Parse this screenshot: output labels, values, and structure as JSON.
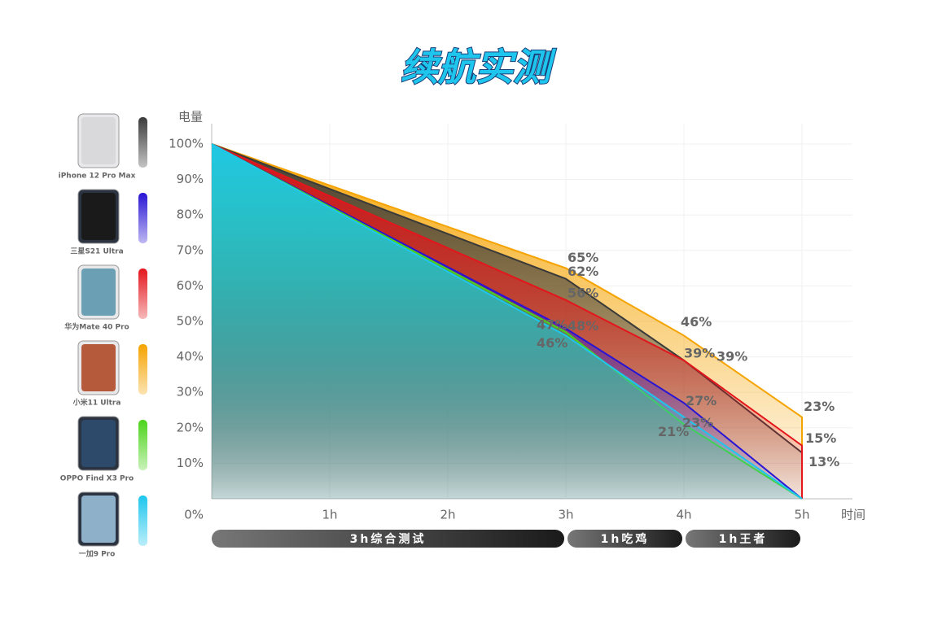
{
  "chart_data": {
    "type": "area",
    "title": "续航实测",
    "ylabel": "电量",
    "xlabel": "时间",
    "x": [
      0,
      3,
      4,
      5
    ],
    "xlim": [
      0,
      5
    ],
    "xticks": [
      {
        "value": 1,
        "label": "1h"
      },
      {
        "value": 2,
        "label": "2h"
      },
      {
        "value": 3,
        "label": "3h"
      },
      {
        "value": 4,
        "label": "4h"
      },
      {
        "value": 5,
        "label": "5h"
      }
    ],
    "ylim": [
      0,
      100
    ],
    "yticks": [
      {
        "value": 0,
        "label": "0%"
      },
      {
        "value": 10,
        "label": "10%"
      },
      {
        "value": 20,
        "label": "20%"
      },
      {
        "value": 30,
        "label": "30%"
      },
      {
        "value": 40,
        "label": "40%"
      },
      {
        "value": 50,
        "label": "50%"
      },
      {
        "value": 60,
        "label": "60%"
      },
      {
        "value": 70,
        "label": "70%"
      },
      {
        "value": 80,
        "label": "80%"
      },
      {
        "value": 90,
        "label": "90%"
      },
      {
        "value": 100,
        "label": "100%"
      }
    ],
    "grid": true,
    "series": [
      {
        "name": "iPhone 12 Pro Max",
        "color": "#3a3a3a",
        "values": [
          100,
          62,
          39,
          13
        ],
        "value_labels": [
          null,
          "62%",
          "39%",
          "13%"
        ]
      },
      {
        "name": "三星S21 Ultra",
        "color": "#2814d4",
        "values": [
          100,
          48,
          27,
          0
        ],
        "value_labels": [
          null,
          "48%",
          "27%",
          null
        ]
      },
      {
        "name": "华为Mate 40 Pro",
        "color": "#e3161c",
        "values": [
          100,
          56,
          39,
          15
        ],
        "value_labels": [
          null,
          "56%",
          "39%",
          "15%"
        ]
      },
      {
        "name": "小米11 Ultra",
        "color": "#f5a300",
        "values": [
          100,
          65,
          46,
          23
        ],
        "value_labels": [
          null,
          "65%",
          "46%",
          "23%"
        ]
      },
      {
        "name": "OPPO Find X3 Pro",
        "color": "#4cd41a",
        "values": [
          100,
          47,
          21,
          0
        ],
        "value_labels": [
          null,
          "47%",
          "21%",
          null
        ]
      },
      {
        "name": "一加9 Pro",
        "color": "#1ec6ee",
        "values": [
          100,
          46,
          23,
          0
        ],
        "value_labels": [
          null,
          "46%",
          "23%",
          null
        ]
      }
    ],
    "phases": [
      {
        "label": "3h综合测试",
        "start": 0,
        "end": 3
      },
      {
        "label": "1h吃鸡",
        "start": 3,
        "end": 4
      },
      {
        "label": "1h王者",
        "start": 4,
        "end": 5
      }
    ]
  }
}
